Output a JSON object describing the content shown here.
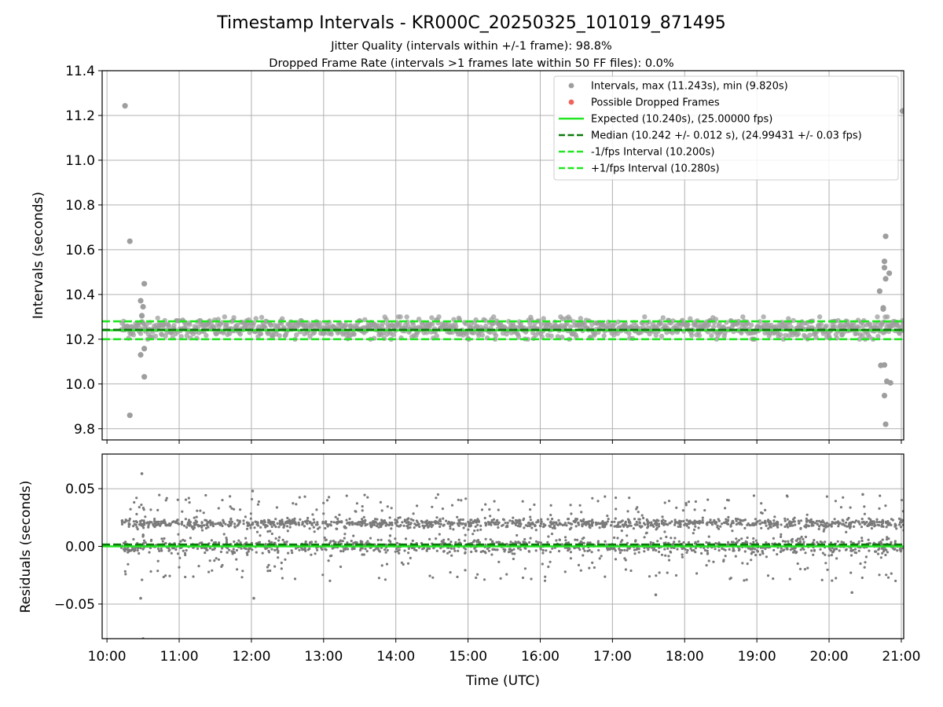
{
  "figure": {
    "title": "Timestamp Intervals - KR000C_20250325_101019_871495",
    "subtitle_1": "Jitter Quality (intervals within +/-1 frame): 98.8%",
    "subtitle_2": "Dropped Frame Rate (intervals >1 frames late within 50 FF files): 0.0%"
  },
  "chart_data": [
    {
      "type": "scatter",
      "ylabel": "Intervals (seconds)",
      "xlim": [
        "09:56",
        "21:02"
      ],
      "ylim": [
        9.75,
        11.4
      ],
      "yticks": [
        9.8,
        10.0,
        10.2,
        10.4,
        10.6,
        10.8,
        11.0,
        11.2,
        11.4
      ],
      "ytick_labels": [
        "9.8",
        "10.0",
        "10.2",
        "10.4",
        "10.6",
        "10.8",
        "11.0",
        "11.2",
        "11.4"
      ],
      "grid": true,
      "legend_position": "top-right",
      "series": [
        {
          "name": "Intervals, max (11.243s), min (9.820s)",
          "color": "#9e9e9e",
          "marker": "circle",
          "band": {
            "x_start": "10:12",
            "x_end": "21:02",
            "center": 10.25,
            "spread": 0.022
          },
          "outliers": [
            {
              "x": "10:15",
              "y": 11.243
            },
            {
              "x": "10:19",
              "y": 10.638
            },
            {
              "x": "10:19",
              "y": 9.86
            },
            {
              "x": "10:28",
              "y": 10.372
            },
            {
              "x": "10:30",
              "y": 10.345
            },
            {
              "x": "10:29",
              "y": 10.305
            },
            {
              "x": "10:31",
              "y": 10.448
            },
            {
              "x": "10:31",
              "y": 10.158
            },
            {
              "x": "10:28",
              "y": 10.13
            },
            {
              "x": "10:31",
              "y": 10.032
            },
            {
              "x": "20:42",
              "y": 10.415
            },
            {
              "x": "20:45",
              "y": 10.34
            },
            {
              "x": "20:45",
              "y": 10.335
            },
            {
              "x": "20:47",
              "y": 10.66
            },
            {
              "x": "20:46",
              "y": 10.548
            },
            {
              "x": "20:46",
              "y": 10.52
            },
            {
              "x": "20:47",
              "y": 10.47
            },
            {
              "x": "20:50",
              "y": 10.495
            },
            {
              "x": "20:43",
              "y": 10.083
            },
            {
              "x": "20:46",
              "y": 10.085
            },
            {
              "x": "20:48",
              "y": 10.012
            },
            {
              "x": "20:51",
              "y": 10.005
            },
            {
              "x": "20:46",
              "y": 9.948
            },
            {
              "x": "20:47",
              "y": 9.82
            },
            {
              "x": "21:01",
              "y": 11.22
            }
          ]
        },
        {
          "name": "Possible Dropped Frames",
          "color": "#f0625d",
          "marker": "circle",
          "points": []
        },
        {
          "name": "Expected (10.240s), (25.00000 fps)",
          "color": "#22e622",
          "style": "solid",
          "y": 10.24
        },
        {
          "name": "Median (10.242 +/- 0.012 s), (24.99431 +/- 0.03 fps)",
          "color": "#0a7a0a",
          "style": "dashed",
          "y": 10.242
        },
        {
          "name": "-1/fps Interval (10.200s)",
          "color": "#22e622",
          "style": "dashed",
          "y": 10.2
        },
        {
          "name": "+1/fps Interval (10.280s)",
          "color": "#22e622",
          "style": "dashed",
          "y": 10.28
        }
      ]
    },
    {
      "type": "scatter",
      "xlabel": "Time (UTC)",
      "ylabel": "Residuals (seconds)",
      "xlim": [
        "09:56",
        "21:02"
      ],
      "ylim": [
        -0.08,
        0.08
      ],
      "yticks": [
        -0.05,
        0.0,
        0.05
      ],
      "ytick_labels": [
        "−0.05",
        "0.00",
        "0.05"
      ],
      "xticks": [
        "10:00",
        "11:00",
        "12:00",
        "13:00",
        "14:00",
        "15:00",
        "16:00",
        "17:00",
        "18:00",
        "19:00",
        "20:00",
        "21:00"
      ],
      "grid": true,
      "series": [
        {
          "name": "Residuals",
          "color": "#7a7a7a",
          "marker": "point",
          "bands": [
            {
              "center": 0.02,
              "spread": 0.002
            },
            {
              "center": 0.0,
              "spread": 0.003
            }
          ],
          "scatter_range": [
            -0.03,
            0.045
          ],
          "outliers": [
            {
              "x": "10:29",
              "y": 0.063
            },
            {
              "x": "10:28",
              "y": -0.045
            },
            {
              "x": "10:30",
              "y": -0.08
            },
            {
              "x": "12:02",
              "y": -0.045
            },
            {
              "x": "12:01",
              "y": 0.048
            },
            {
              "x": "17:36",
              "y": -0.042
            },
            {
              "x": "20:19",
              "y": -0.04
            },
            {
              "x": "20:28",
              "y": 0.045
            }
          ]
        },
        {
          "name": "Expected",
          "color": "#22e622",
          "style": "solid",
          "y": 0.0
        },
        {
          "name": "Median",
          "color": "#0a7a0a",
          "style": "dashed",
          "y": 0.0016
        }
      ]
    }
  ]
}
